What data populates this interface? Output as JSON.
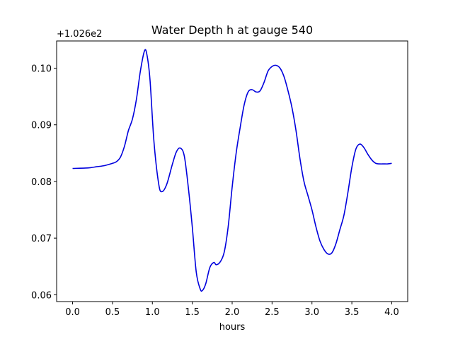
{
  "chart_data": {
    "type": "line",
    "title": "Water Depth h at gauge 540",
    "xlabel": "hours",
    "ylabel": "",
    "y_offset_label": "+1.026e2",
    "xlim": [
      -0.2,
      4.2
    ],
    "ylim": [
      0.0588,
      0.1048
    ],
    "x_ticks": [
      0.0,
      0.5,
      1.0,
      1.5,
      2.0,
      2.5,
      3.0,
      3.5,
      4.0
    ],
    "x_tick_labels": [
      "0.0",
      "0.5",
      "1.0",
      "1.5",
      "2.0",
      "2.5",
      "3.0",
      "3.5",
      "4.0"
    ],
    "y_ticks": [
      0.06,
      0.07,
      0.08,
      0.09,
      0.1
    ],
    "y_tick_labels": [
      "0.06",
      "0.07",
      "0.08",
      "0.09",
      "0.10"
    ],
    "grid": false,
    "series": [
      {
        "color": "#0000dd",
        "x": [
          0.0,
          0.2,
          0.3,
          0.4,
          0.5,
          0.55,
          0.6,
          0.65,
          0.7,
          0.75,
          0.8,
          0.85,
          0.9,
          0.93,
          0.97,
          1.02,
          1.08,
          1.12,
          1.18,
          1.25,
          1.3,
          1.35,
          1.4,
          1.45,
          1.5,
          1.55,
          1.6,
          1.63,
          1.67,
          1.72,
          1.77,
          1.8,
          1.85,
          1.9,
          1.95,
          2.0,
          2.05,
          2.1,
          2.15,
          2.2,
          2.25,
          2.3,
          2.35,
          2.4,
          2.45,
          2.5,
          2.55,
          2.6,
          2.65,
          2.7,
          2.75,
          2.8,
          2.85,
          2.9,
          2.95,
          3.0,
          3.05,
          3.1,
          3.15,
          3.2,
          3.25,
          3.3,
          3.35,
          3.4,
          3.45,
          3.5,
          3.55,
          3.6,
          3.65,
          3.7,
          3.75,
          3.8,
          3.85,
          3.9,
          3.95,
          4.0
        ],
        "y": [
          0.0823,
          0.0824,
          0.0826,
          0.0828,
          0.0832,
          0.0835,
          0.0843,
          0.0862,
          0.089,
          0.091,
          0.0945,
          0.0995,
          0.103,
          0.1025,
          0.098,
          0.087,
          0.0795,
          0.0782,
          0.0795,
          0.083,
          0.0852,
          0.0859,
          0.0845,
          0.079,
          0.072,
          0.064,
          0.061,
          0.0608,
          0.062,
          0.0648,
          0.0657,
          0.0653,
          0.0658,
          0.0675,
          0.072,
          0.079,
          0.085,
          0.0895,
          0.0935,
          0.0958,
          0.0962,
          0.0958,
          0.096,
          0.0975,
          0.0995,
          0.1003,
          0.1005,
          0.1,
          0.0985,
          0.096,
          0.093,
          0.089,
          0.084,
          0.08,
          0.0775,
          0.075,
          0.072,
          0.0695,
          0.068,
          0.0672,
          0.0674,
          0.069,
          0.0715,
          0.074,
          0.078,
          0.0825,
          0.0857,
          0.0866,
          0.086,
          0.0848,
          0.0838,
          0.0832,
          0.0831,
          0.0831,
          0.0831,
          0.0832
        ]
      }
    ]
  }
}
